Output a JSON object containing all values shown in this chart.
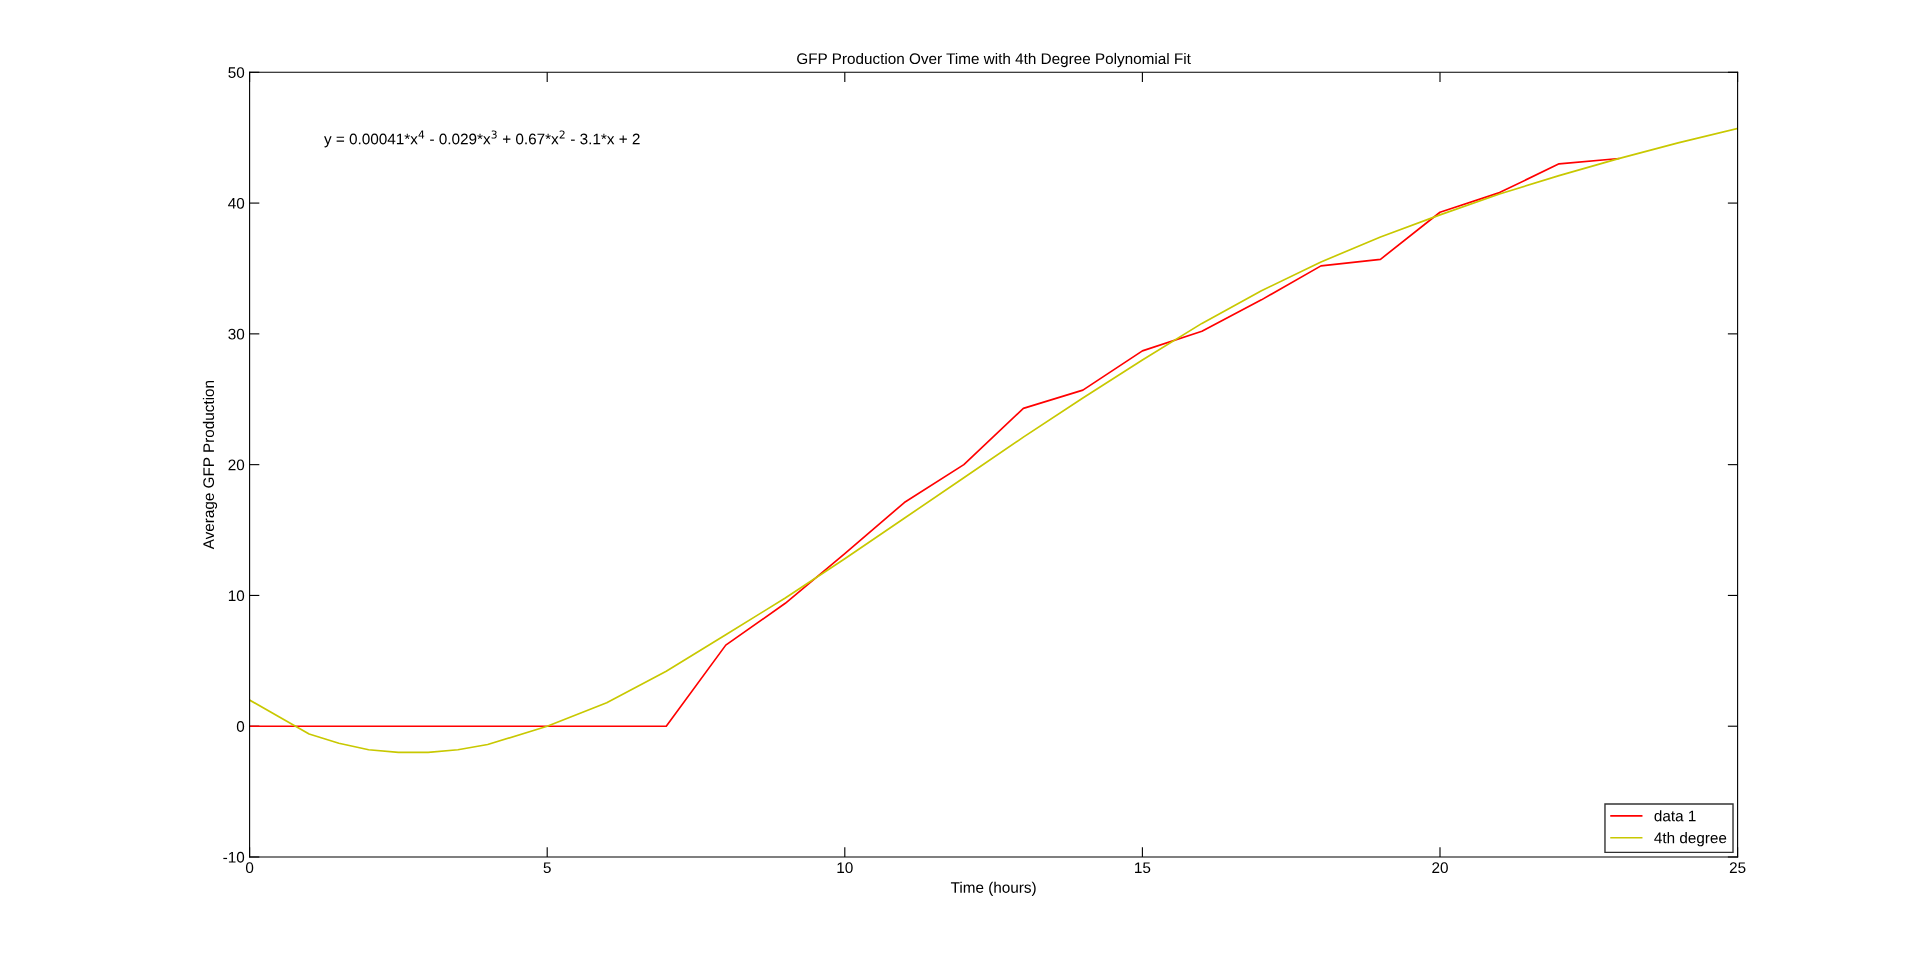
{
  "chart_data": {
    "type": "line",
    "title": "GFP Production Over Time with 4th Degree Polynomial Fit",
    "xlabel": "Time (hours)",
    "ylabel": "Average GFP Production",
    "xlim": [
      0,
      25
    ],
    "ylim": [
      -10,
      50
    ],
    "xticks": [
      0,
      5,
      10,
      15,
      20,
      25
    ],
    "yticks": [
      -10,
      0,
      10,
      20,
      30,
      40,
      50
    ],
    "grid": false,
    "legend": "bottom right",
    "marker": "none",
    "line_style": "solid",
    "annotations": [
      "y = 0.00041*x$^{4}$ - 0.029*x$^{3}$ + 0.67*x$^{2}$ - 3.1*x + 2"
    ],
    "series": [
      {
        "name": "data 1",
        "color": "#ff0000",
        "x": [
          0,
          1,
          2,
          3,
          4,
          5,
          6,
          7,
          8,
          9,
          10,
          11,
          12,
          13,
          14,
          15,
          16,
          17,
          18,
          19,
          20,
          21,
          22,
          23
        ],
        "values": [
          0,
          0,
          0,
          0,
          0,
          0,
          0,
          0,
          6.2,
          9.4,
          13.2,
          17.1,
          20.0,
          24.3,
          25.7,
          28.7,
          30.2,
          32.6,
          35.2,
          35.7,
          39.3,
          40.8,
          43.0,
          43.4
        ]
      },
      {
        "name": "4th degree",
        "color": "#c8c800",
        "x": [
          0,
          0.5,
          1,
          1.5,
          2,
          2.5,
          3,
          3.5,
          4,
          5,
          6,
          7,
          8,
          9,
          10,
          11,
          12,
          13,
          14,
          15,
          16,
          17,
          18,
          19,
          20,
          21,
          22,
          23,
          24,
          25
        ],
        "values": [
          2,
          0.7,
          -0.6,
          -1.3,
          -1.8,
          -2.0,
          -2.0,
          -1.8,
          -1.4,
          0,
          1.8,
          4.2,
          7,
          9.8,
          12.8,
          15.9,
          19,
          22.1,
          25.1,
          28,
          30.8,
          33.3,
          35.5,
          37.4,
          39.1,
          40.7,
          42.1,
          43.4,
          44.6,
          45.7
        ]
      }
    ]
  }
}
